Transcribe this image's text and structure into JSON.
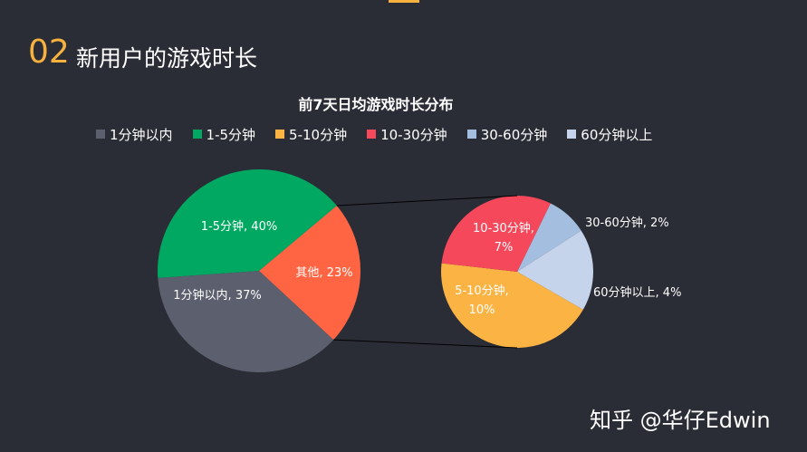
{
  "header": {
    "section_number": "02",
    "section_title": "新用户的游戏时长"
  },
  "watermark": "知乎 @华仔Edwin",
  "colors": {
    "background": "#2b2d36",
    "accent": "#f6b13e"
  },
  "chart_data": {
    "type": "pie",
    "subtype": "pie-of-pie",
    "title": "前7天日均游戏时长分布",
    "legend_placement": "top",
    "legend": [
      {
        "label": "1分钟以内",
        "color": "#5b5f6e"
      },
      {
        "label": "1-5分钟",
        "color": "#00a862"
      },
      {
        "label": "5-10分钟",
        "color": "#fbb343"
      },
      {
        "label": "10-30分钟",
        "color": "#f5485b"
      },
      {
        "label": "30-60分钟",
        "color": "#a4bee0"
      },
      {
        "label": "60分钟以上",
        "color": "#c5d4ea"
      }
    ],
    "primary_pie": [
      {
        "label": "1-5分钟",
        "value": 40,
        "display": "1-5分钟, 40%",
        "color": "#00a862"
      },
      {
        "label": "其他",
        "value": 23,
        "display": "其他, 23%",
        "color": "#ff6543"
      },
      {
        "label": "1分钟以内",
        "value": 37,
        "display": "1分钟以内, 37%",
        "color": "#5b5f6e"
      }
    ],
    "secondary_pie": [
      {
        "label": "30-60分钟",
        "value": 2,
        "display": "30-60分钟, 2%",
        "color": "#a4bee0"
      },
      {
        "label": "60分钟以上",
        "value": 4,
        "display": "60分钟以上, 4%",
        "color": "#c5d4ea"
      },
      {
        "label": "5-10分钟",
        "value": 10,
        "display_line1": "5-10分钟,",
        "display_line2": "10%",
        "color": "#fbb343"
      },
      {
        "label": "10-30分钟",
        "value": 7,
        "display_line1": "10-30分钟,",
        "display_line2": "7%",
        "color": "#f5485b"
      }
    ]
  }
}
